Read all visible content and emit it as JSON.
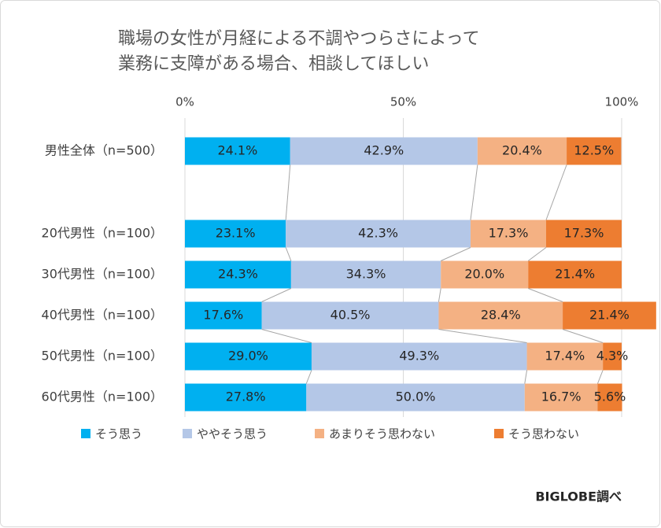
{
  "chart_data": {
    "type": "stacked-barh",
    "title": [
      "職場の女性が月経による不調やつらさによって",
      "業務に支障がある場合、相談してほしい"
    ],
    "categories": [
      "男性全体（n=500）",
      "20代男性（n=100）",
      "30代男性（n=100）",
      "40代男性（n=100）",
      "50代男性（n=100）",
      "60代男性（n=100）"
    ],
    "series": [
      {
        "name": "そう思う",
        "color": "#00b0f0",
        "values": [
          24.1,
          23.1,
          24.3,
          17.6,
          29.0,
          27.8
        ],
        "value_labels": [
          "24.1%",
          "23.1%",
          "24.3%",
          "17.6%",
          "29.0%",
          "27.8%"
        ]
      },
      {
        "name": "ややそう思う",
        "color": "#b4c7e7",
        "values": [
          42.9,
          42.3,
          34.3,
          40.5,
          49.3,
          50.0
        ],
        "value_labels": [
          "42.9%",
          "42.3%",
          "34.3%",
          "40.5%",
          "49.3%",
          "50.0%"
        ]
      },
      {
        "name": "あまりそう思わない",
        "color": "#f4b183",
        "values": [
          20.4,
          17.3,
          20.0,
          28.4,
          17.4,
          16.7
        ],
        "value_labels": [
          "20.4%",
          "17.3%",
          "20.0%",
          "28.4%",
          "17.4%",
          "16.7%"
        ]
      },
      {
        "name": "そう思わない",
        "color": "#ed7d31",
        "values": [
          12.5,
          17.3,
          21.4,
          21.4,
          4.3,
          5.6
        ],
        "value_labels": [
          "12.5%",
          "17.3%",
          "21.4%",
          "21.4%",
          "4.3%",
          "5.6%"
        ]
      }
    ],
    "xlim": [
      0,
      100
    ],
    "xticks": [
      {
        "value": 0,
        "label": "0%"
      },
      {
        "value": 50,
        "label": "50%"
      },
      {
        "value": 100,
        "label": "100%"
      }
    ],
    "grid": true,
    "legend": "bottom",
    "source": "BIGLOBE調べ"
  }
}
